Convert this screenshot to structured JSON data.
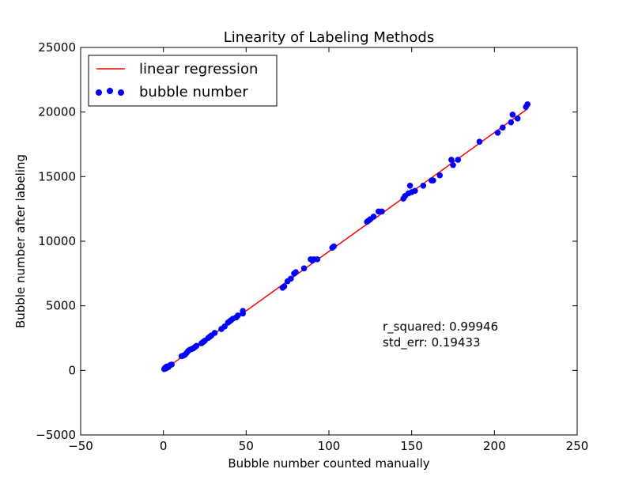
{
  "chart_data": {
    "type": "scatter",
    "title": "Linearity of Labeling Methods",
    "xlabel": "Bubble number counted manually",
    "ylabel": "Bubble number after labeling",
    "xlim": [
      -50,
      250
    ],
    "ylim": [
      -5000,
      25000
    ],
    "xticks": [
      "−50",
      "0",
      "50",
      "100",
      "150",
      "200",
      "250"
    ],
    "xtick_values": [
      -50,
      0,
      50,
      100,
      150,
      200,
      250
    ],
    "yticks": [
      "−5000",
      "0",
      "5000",
      "10000",
      "15000",
      "20000",
      "25000"
    ],
    "ytick_values": [
      -5000,
      0,
      5000,
      10000,
      15000,
      20000,
      25000
    ],
    "grid": false,
    "legend_position": "top-left",
    "series": [
      {
        "name": "linear regression",
        "kind": "line",
        "color": "#ff0000",
        "x": [
          1,
          220
        ],
        "y": [
          100,
          20250
        ]
      },
      {
        "name": "bubble number",
        "kind": "scatter",
        "color": "#0000ff",
        "x": [
          0.5,
          1,
          1.5,
          2,
          3,
          4,
          5,
          11,
          12,
          13,
          14,
          15,
          16,
          17,
          18,
          19,
          20,
          23,
          24,
          25,
          27,
          28,
          29,
          31,
          35,
          37,
          39,
          40,
          41,
          42,
          44,
          45,
          48,
          48,
          72,
          73,
          75,
          77,
          79,
          80,
          85,
          89,
          90,
          91,
          93,
          102,
          103,
          123,
          124,
          125,
          127,
          130,
          132,
          145,
          146,
          148,
          149,
          150,
          152,
          157,
          162,
          163,
          167,
          174,
          175,
          178,
          191,
          202,
          205,
          210,
          211,
          214,
          219,
          220
        ],
        "y": [
          100,
          200,
          150,
          300,
          250,
          400,
          450,
          1100,
          1150,
          1200,
          1350,
          1500,
          1600,
          1650,
          1700,
          1800,
          1900,
          2100,
          2200,
          2300,
          2500,
          2600,
          2700,
          2900,
          3200,
          3400,
          3700,
          3800,
          3900,
          4000,
          4100,
          4250,
          4400,
          4600,
          6400,
          6500,
          6900,
          7100,
          7500,
          7600,
          7900,
          8600,
          8500,
          8600,
          8600,
          9500,
          9600,
          11500,
          11600,
          11700,
          11900,
          12300,
          12300,
          13300,
          13500,
          13700,
          14300,
          13800,
          13900,
          14300,
          14700,
          14700,
          15100,
          16300,
          15900,
          16300,
          17700,
          18400,
          18800,
          19200,
          19800,
          19500,
          20400,
          20600
        ]
      }
    ],
    "annotations": [
      "r_squared: 0.99946",
      "std_err: 0.19433"
    ]
  }
}
